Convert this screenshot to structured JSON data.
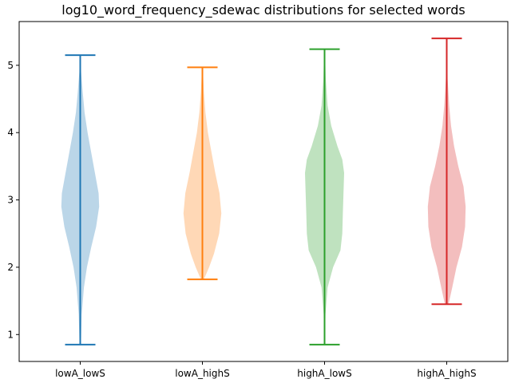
{
  "chart_data": {
    "type": "violin",
    "title": "log10_word_frequency_sdewac distributions for selected words",
    "xlabel": "",
    "ylabel": "",
    "ylim": [
      0.6,
      5.65
    ],
    "yticks": [
      1,
      2,
      3,
      4,
      5
    ],
    "ytick_labels": [
      "1",
      "2",
      "3",
      "4",
      "5"
    ],
    "grid": false,
    "series": [
      {
        "label": "lowA_lowS",
        "color": "#1f77b4",
        "min": 0.85,
        "max": 5.15,
        "profile": [
          [
            0.85,
            0.02
          ],
          [
            1.3,
            0.05
          ],
          [
            1.7,
            0.12
          ],
          [
            2.0,
            0.22
          ],
          [
            2.3,
            0.36
          ],
          [
            2.6,
            0.52
          ],
          [
            2.9,
            0.62
          ],
          [
            3.1,
            0.6
          ],
          [
            3.4,
            0.48
          ],
          [
            3.7,
            0.36
          ],
          [
            4.0,
            0.24
          ],
          [
            4.3,
            0.14
          ],
          [
            4.6,
            0.08
          ],
          [
            4.9,
            0.03
          ],
          [
            5.15,
            0.01
          ]
        ]
      },
      {
        "label": "lowA_highS",
        "color": "#ff7f0e",
        "min": 1.82,
        "max": 4.97,
        "profile": [
          [
            1.82,
            0.05
          ],
          [
            2.0,
            0.22
          ],
          [
            2.2,
            0.38
          ],
          [
            2.5,
            0.55
          ],
          [
            2.8,
            0.62
          ],
          [
            3.1,
            0.56
          ],
          [
            3.4,
            0.42
          ],
          [
            3.7,
            0.3
          ],
          [
            4.0,
            0.18
          ],
          [
            4.3,
            0.1
          ],
          [
            4.6,
            0.05
          ],
          [
            4.97,
            0.01
          ]
        ]
      },
      {
        "label": "highA_lowS",
        "color": "#2ca02c",
        "min": 0.85,
        "max": 5.24,
        "profile": [
          [
            0.85,
            0.01
          ],
          [
            1.3,
            0.03
          ],
          [
            1.7,
            0.1
          ],
          [
            2.0,
            0.28
          ],
          [
            2.25,
            0.52
          ],
          [
            2.5,
            0.58
          ],
          [
            2.8,
            0.6
          ],
          [
            3.1,
            0.62
          ],
          [
            3.4,
            0.64
          ],
          [
            3.6,
            0.58
          ],
          [
            3.8,
            0.42
          ],
          [
            4.1,
            0.22
          ],
          [
            4.4,
            0.1
          ],
          [
            4.8,
            0.04
          ],
          [
            5.24,
            0.01
          ]
        ]
      },
      {
        "label": "highA_highS",
        "color": "#d62728",
        "min": 1.45,
        "max": 5.4,
        "profile": [
          [
            1.45,
            0.06
          ],
          [
            1.7,
            0.18
          ],
          [
            2.0,
            0.32
          ],
          [
            2.3,
            0.5
          ],
          [
            2.6,
            0.6
          ],
          [
            2.9,
            0.62
          ],
          [
            3.2,
            0.55
          ],
          [
            3.5,
            0.38
          ],
          [
            3.8,
            0.24
          ],
          [
            4.1,
            0.14
          ],
          [
            4.4,
            0.08
          ],
          [
            4.8,
            0.03
          ],
          [
            5.4,
            0.01
          ]
        ]
      }
    ]
  }
}
